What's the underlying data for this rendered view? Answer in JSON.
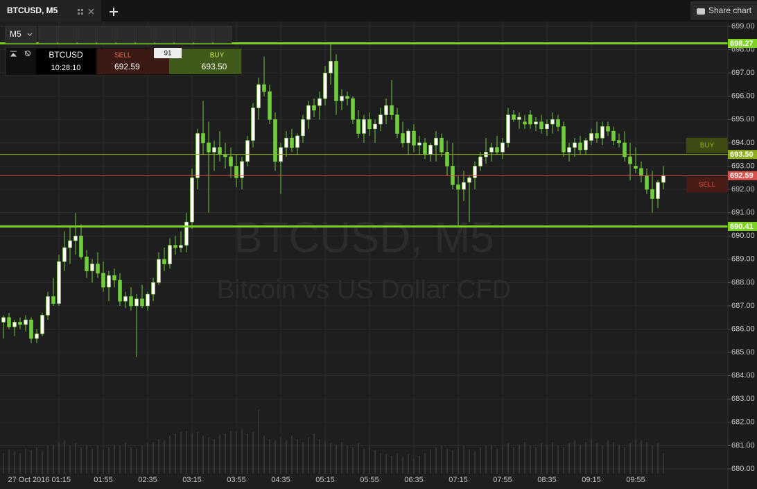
{
  "ui": {
    "tab": "BTCUSD, M5",
    "share": "Share chart",
    "timeframe": "M5",
    "panel": {
      "symbol": "BTCUSD",
      "time": "10:28:10",
      "sell": "SELL",
      "buy": "BUY",
      "spread": 91
    }
  },
  "chart_data": {
    "type": "candlestick",
    "watermark": [
      "BTCUSD, M5",
      "Bitcoin vs US Dollar CFD"
    ],
    "up_color": "#ffffff",
    "down_color": "#6fcf3a",
    "wick_color": "#6fcf3a",
    "volume_color": "#4a4a4a",
    "ylim": [
      680,
      699
    ],
    "yticks": [
      {
        "value": 680,
        "label": "680.00"
      },
      {
        "value": 681,
        "label": "681.00"
      },
      {
        "value": 682,
        "label": "682.00"
      },
      {
        "value": 683,
        "label": "683.00"
      },
      {
        "value": 684,
        "label": "684.00"
      },
      {
        "value": 685,
        "label": "685.00"
      },
      {
        "value": 686,
        "label": "686.00"
      },
      {
        "value": 687,
        "label": "687.00"
      },
      {
        "value": 688,
        "label": "688.00"
      },
      {
        "value": 689,
        "label": "689.00"
      },
      {
        "value": 690,
        "label": "690.00"
      },
      {
        "value": 691,
        "label": "691.00"
      },
      {
        "value": 692,
        "label": "692.00"
      },
      {
        "value": 693,
        "label": "693.00"
      },
      {
        "value": 694,
        "label": "694.00"
      },
      {
        "value": 695,
        "label": "695.00"
      },
      {
        "value": 696,
        "label": "696.00"
      },
      {
        "value": 697,
        "label": "697.00"
      },
      {
        "value": 698,
        "label": "698.00"
      },
      {
        "value": 699,
        "label": "699.00"
      }
    ],
    "xticks": [
      {
        "value": "01:15",
        "label": "27 Oct 2016 01:15"
      },
      "01:55",
      "02:35",
      "03:15",
      "03:55",
      "04:35",
      "05:15",
      "05:55",
      "06:35",
      "07:15",
      "07:55",
      "08:35",
      "09:15",
      "09:55"
    ],
    "grid": true,
    "levels": [
      {
        "value": 698.27,
        "color": "#7ed321",
        "width": 3
      },
      {
        "name": "BUY",
        "value": 693.5,
        "label": "693.50",
        "color": "#8fae1b",
        "tag_color": "#3d4a12",
        "width": 1
      },
      {
        "name": "SELL",
        "value": 692.59,
        "color": "#d9534f",
        "tag_color": "#4a1b14",
        "width": 1
      },
      {
        "value": 690.41,
        "color": "#7ed321",
        "width": 3
      }
    ],
    "x": [
      "00:25",
      "00:30",
      "00:35",
      "00:40",
      "00:45",
      "00:50",
      "00:55",
      "01:00",
      "01:05",
      "01:10",
      "01:15",
      "01:20",
      "01:25",
      "01:30",
      "01:35",
      "01:40",
      "01:45",
      "01:50",
      "01:55",
      "02:00",
      "02:05",
      "02:10",
      "02:15",
      "02:20",
      "02:25",
      "02:30",
      "02:35",
      "02:40",
      "02:45",
      "02:50",
      "02:55",
      "03:00",
      "03:05",
      "03:10",
      "03:15",
      "03:20",
      "03:25",
      "03:30",
      "03:35",
      "03:40",
      "03:45",
      "03:50",
      "03:55",
      "04:00",
      "04:05",
      "04:10",
      "04:15",
      "04:20",
      "04:25",
      "04:30",
      "04:35",
      "04:40",
      "04:45",
      "04:50",
      "04:55",
      "05:00",
      "05:05",
      "05:10",
      "05:15",
      "05:20",
      "05:25",
      "05:30",
      "05:35",
      "05:40",
      "05:45",
      "05:50",
      "05:55",
      "06:00",
      "06:05",
      "06:10",
      "06:15",
      "06:20",
      "06:25",
      "06:30",
      "06:35",
      "06:40",
      "06:45",
      "06:50",
      "06:55",
      "07:00",
      "07:05",
      "07:10",
      "07:15",
      "07:20",
      "07:25",
      "07:30",
      "07:35",
      "07:40",
      "07:45",
      "07:50",
      "07:55",
      "08:00",
      "08:05",
      "08:10",
      "08:15",
      "08:20",
      "08:25",
      "08:30",
      "08:35",
      "08:40",
      "08:45",
      "08:50",
      "08:55",
      "09:00",
      "09:05",
      "09:10",
      "09:15",
      "09:20",
      "09:25",
      "09:30",
      "09:35",
      "09:40",
      "09:45",
      "09:50",
      "09:55",
      "10:00",
      "10:05",
      "10:10",
      "10:15",
      "10:20"
    ],
    "ohlc": [
      [
        686.3,
        686.6,
        685.6,
        686.5
      ],
      [
        686.5,
        686.7,
        686.0,
        686.1
      ],
      [
        686.1,
        686.4,
        685.7,
        686.3
      ],
      [
        686.3,
        686.5,
        686.0,
        686.2
      ],
      [
        686.2,
        686.6,
        685.9,
        686.4
      ],
      [
        686.4,
        686.5,
        685.4,
        685.6
      ],
      [
        685.6,
        686.0,
        685.4,
        685.8
      ],
      [
        685.8,
        686.7,
        685.7,
        686.6
      ],
      [
        686.6,
        687.6,
        686.4,
        687.4
      ],
      [
        687.4,
        688.2,
        687.0,
        687.1
      ],
      [
        687.1,
        689.2,
        687.0,
        688.9
      ],
      [
        688.9,
        690.2,
        688.5,
        689.5
      ],
      [
        689.5,
        690.4,
        688.8,
        689.8
      ],
      [
        689.8,
        691.0,
        689.2,
        690.0
      ],
      [
        690.0,
        690.5,
        689.0,
        689.1
      ],
      [
        689.1,
        689.4,
        688.2,
        688.5
      ],
      [
        688.5,
        689.0,
        688.0,
        688.8
      ],
      [
        688.8,
        689.3,
        688.2,
        688.4
      ],
      [
        688.4,
        688.9,
        687.6,
        687.8
      ],
      [
        687.8,
        688.5,
        687.2,
        688.3
      ],
      [
        688.3,
        688.6,
        687.8,
        688.1
      ],
      [
        688.1,
        688.4,
        687.0,
        687.2
      ],
      [
        687.2,
        687.6,
        686.9,
        687.4
      ],
      [
        687.4,
        687.8,
        686.8,
        687.0
      ],
      [
        687.0,
        687.5,
        684.8,
        687.3
      ],
      [
        687.3,
        687.9,
        686.9,
        687.0
      ],
      [
        687.0,
        687.6,
        686.8,
        687.5
      ],
      [
        687.5,
        688.2,
        687.2,
        688.0
      ],
      [
        688.0,
        689.3,
        687.9,
        689.0
      ],
      [
        689.0,
        689.5,
        688.5,
        688.8
      ],
      [
        688.8,
        689.9,
        688.6,
        689.6
      ],
      [
        689.6,
        690.0,
        689.2,
        689.5
      ],
      [
        689.5,
        690.2,
        689.3,
        689.6
      ],
      [
        689.6,
        691.0,
        689.3,
        690.6
      ],
      [
        690.6,
        692.9,
        690.3,
        692.5
      ],
      [
        692.5,
        694.6,
        692.0,
        694.4
      ],
      [
        694.4,
        695.8,
        693.5,
        694.0
      ],
      [
        694.0,
        694.9,
        691.0,
        693.6
      ],
      [
        693.6,
        694.1,
        692.8,
        693.8
      ],
      [
        693.8,
        694.5,
        693.2,
        693.5
      ],
      [
        693.5,
        694.0,
        692.9,
        693.4
      ],
      [
        693.4,
        693.8,
        692.5,
        693.0
      ],
      [
        693.0,
        693.5,
        692.1,
        692.5
      ],
      [
        692.5,
        693.4,
        692.0,
        693.2
      ],
      [
        693.2,
        694.3,
        693.0,
        694.1
      ],
      [
        694.1,
        695.7,
        693.8,
        695.5
      ],
      [
        695.5,
        696.8,
        695.0,
        696.5
      ],
      [
        696.5,
        697.7,
        696.0,
        696.2
      ],
      [
        696.2,
        696.5,
        694.8,
        695.0
      ],
      [
        695.0,
        695.3,
        692.8,
        693.2
      ],
      [
        693.2,
        694.0,
        691.8,
        693.8
      ],
      [
        693.8,
        694.5,
        693.4,
        694.2
      ],
      [
        694.2,
        694.6,
        693.6,
        693.8
      ],
      [
        693.8,
        694.4,
        693.5,
        694.3
      ],
      [
        694.3,
        695.2,
        694.0,
        695.0
      ],
      [
        695.0,
        695.8,
        694.6,
        695.6
      ],
      [
        695.6,
        695.9,
        695.1,
        695.4
      ],
      [
        695.6,
        696.2,
        695.0,
        695.9
      ],
      [
        695.9,
        697.3,
        695.6,
        697.0
      ],
      [
        697.0,
        698.27,
        696.5,
        697.5
      ],
      [
        697.5,
        697.8,
        695.2,
        695.8
      ],
      [
        695.8,
        696.3,
        695.4,
        696.0
      ],
      [
        696.0,
        696.2,
        695.6,
        695.9
      ],
      [
        695.9,
        696.0,
        694.8,
        695.0
      ],
      [
        695.0,
        695.4,
        694.2,
        694.4
      ],
      [
        694.4,
        695.2,
        694.0,
        695.0
      ],
      [
        695.0,
        695.3,
        694.3,
        694.6
      ],
      [
        694.6,
        695.0,
        694.0,
        694.8
      ],
      [
        694.8,
        695.5,
        694.5,
        695.2
      ],
      [
        695.2,
        695.9,
        694.8,
        695.6
      ],
      [
        695.6,
        696.7,
        695.0,
        695.2
      ],
      [
        695.2,
        695.5,
        694.2,
        694.4
      ],
      [
        694.4,
        694.9,
        693.8,
        694.0
      ],
      [
        694.0,
        694.6,
        693.5,
        694.5
      ],
      [
        694.5,
        694.8,
        693.6,
        693.9
      ],
      [
        693.9,
        694.3,
        693.5,
        694.0
      ],
      [
        694.0,
        694.2,
        693.3,
        693.5
      ],
      [
        693.5,
        694.0,
        693.2,
        693.9
      ],
      [
        693.9,
        694.5,
        693.2,
        694.2
      ],
      [
        694.2,
        694.4,
        693.4,
        693.6
      ],
      [
        693.6,
        694.1,
        692.6,
        693.0
      ],
      [
        693.0,
        694.0,
        692.0,
        692.2
      ],
      [
        692.2,
        692.6,
        690.4,
        692.0
      ],
      [
        692.0,
        692.8,
        691.5,
        692.3
      ],
      [
        692.3,
        692.6,
        690.6,
        692.5
      ],
      [
        692.5,
        693.2,
        692.0,
        693.0
      ],
      [
        693.0,
        693.6,
        692.8,
        693.4
      ],
      [
        693.4,
        694.2,
        693.1,
        693.6
      ],
      [
        693.6,
        694.0,
        693.2,
        693.8
      ],
      [
        693.8,
        694.3,
        693.5,
        693.6
      ],
      [
        693.6,
        694.2,
        693.3,
        694.0
      ],
      [
        694.0,
        695.5,
        693.8,
        695.2
      ],
      [
        695.2,
        695.4,
        694.9,
        695.0
      ],
      [
        695.0,
        695.3,
        694.6,
        695.1
      ],
      [
        694.9,
        695.2,
        694.6,
        694.8
      ],
      [
        695.2,
        695.4,
        694.6,
        694.8
      ],
      [
        694.8,
        695.1,
        694.5,
        694.9
      ],
      [
        694.9,
        695.2,
        694.4,
        694.6
      ],
      [
        694.6,
        695.0,
        694.3,
        694.8
      ],
      [
        694.8,
        695.3,
        694.4,
        695.0
      ],
      [
        695.0,
        695.2,
        694.5,
        694.7
      ],
      [
        694.7,
        694.9,
        693.4,
        693.6
      ],
      [
        693.6,
        694.0,
        693.2,
        693.8
      ],
      [
        693.8,
        694.2,
        693.4,
        694.0
      ],
      [
        694.0,
        694.3,
        693.5,
        693.7
      ],
      [
        693.7,
        694.2,
        693.5,
        694.1
      ],
      [
        694.1,
        694.6,
        693.9,
        694.4
      ],
      [
        694.4,
        694.9,
        694.0,
        694.2
      ],
      [
        694.2,
        694.9,
        693.9,
        694.7
      ],
      [
        694.7,
        694.9,
        694.3,
        694.5
      ],
      [
        694.5,
        694.7,
        693.9,
        694.1
      ],
      [
        694.1,
        694.4,
        693.8,
        694.0
      ],
      [
        694.0,
        694.5,
        693.2,
        693.4
      ],
      [
        693.4,
        694.0,
        692.4,
        693.1
      ],
      [
        693.0,
        693.8,
        692.7,
        692.9
      ],
      [
        692.9,
        693.2,
        692.3,
        692.6
      ],
      [
        692.6,
        692.9,
        691.8,
        692.0
      ],
      [
        692.0,
        692.8,
        691.0,
        691.6
      ],
      [
        691.6,
        692.4,
        691.2,
        692.3
      ],
      [
        692.3,
        693.0,
        692.0,
        692.59
      ]
    ],
    "volume": [
      30,
      35,
      32,
      30,
      36,
      34,
      38,
      33,
      40,
      42,
      45,
      48,
      40,
      44,
      38,
      42,
      36,
      40,
      35,
      38,
      42,
      40,
      45,
      38,
      36,
      40,
      44,
      46,
      50,
      48,
      55,
      58,
      60,
      62,
      58,
      60,
      55,
      52,
      50,
      56,
      58,
      62,
      60,
      65,
      58,
      60,
      92,
      55,
      50,
      48,
      52,
      48,
      55,
      50,
      46,
      52,
      58,
      50,
      48,
      44,
      42,
      46,
      40,
      38,
      44,
      36,
      40,
      34,
      30,
      28,
      26,
      30,
      24,
      28,
      22,
      26,
      30,
      35,
      38,
      40,
      36,
      34,
      38,
      40,
      35,
      32,
      38,
      40,
      42,
      36,
      40,
      44,
      38,
      42,
      46,
      40,
      38,
      44,
      42,
      46,
      40,
      38,
      44,
      48,
      42,
      46,
      50,
      44,
      40,
      48,
      46,
      42,
      38,
      44,
      50,
      48,
      46,
      40,
      44,
      30
    ]
  }
}
